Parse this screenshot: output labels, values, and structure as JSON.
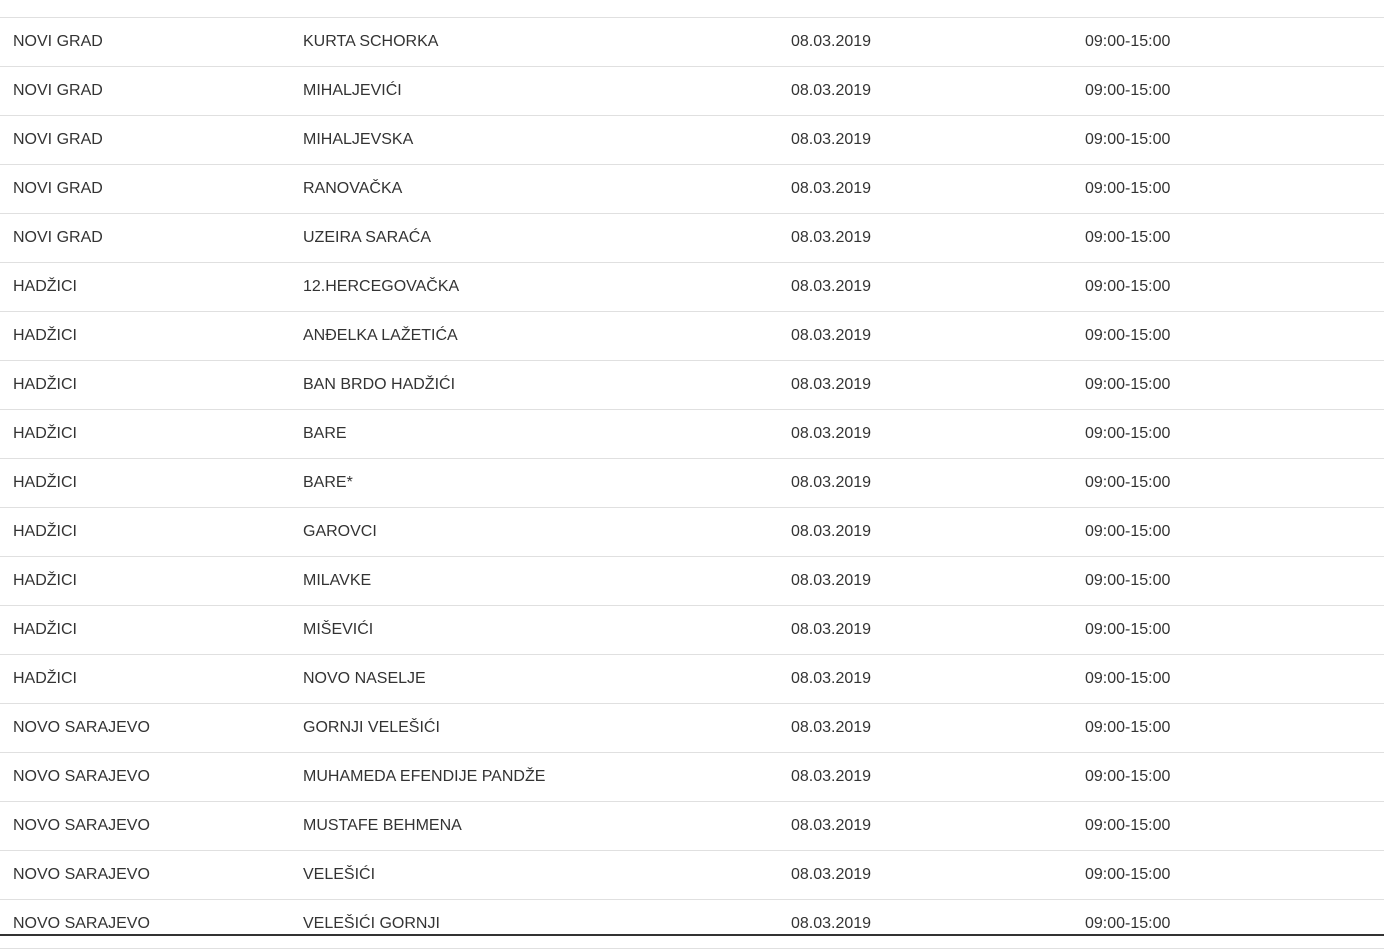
{
  "table": {
    "rows": [
      [
        "NOVI GRAD",
        "KURTA SCHORKA",
        "08.03.2019",
        "09:00-15:00"
      ],
      [
        "NOVI GRAD",
        "MIHALJEVIĆI",
        "08.03.2019",
        "09:00-15:00"
      ],
      [
        "NOVI GRAD",
        "MIHALJEVSKA",
        "08.03.2019",
        "09:00-15:00"
      ],
      [
        "NOVI GRAD",
        "RANOVAČKA",
        "08.03.2019",
        "09:00-15:00"
      ],
      [
        "NOVI GRAD",
        "UZEIRA SARAĆA",
        "08.03.2019",
        "09:00-15:00"
      ],
      [
        "HADŽICI",
        "12.HERCEGOVAČKA",
        "08.03.2019",
        "09:00-15:00"
      ],
      [
        "HADŽICI",
        "ANĐELKA LAŽETIĆA",
        "08.03.2019",
        "09:00-15:00"
      ],
      [
        "HADŽICI",
        "BAN BRDO HADŽIĆI",
        "08.03.2019",
        "09:00-15:00"
      ],
      [
        "HADŽICI",
        "BARE",
        "08.03.2019",
        "09:00-15:00"
      ],
      [
        "HADŽICI",
        "BARE*",
        "08.03.2019",
        "09:00-15:00"
      ],
      [
        "HADŽICI",
        "GAROVCI",
        "08.03.2019",
        "09:00-15:00"
      ],
      [
        "HADŽICI",
        "MILAVKE",
        "08.03.2019",
        "09:00-15:00"
      ],
      [
        "HADŽICI",
        "MIŠEVIĆI",
        "08.03.2019",
        "09:00-15:00"
      ],
      [
        "HADŽICI",
        "NOVO NASELJE",
        "08.03.2019",
        "09:00-15:00"
      ],
      [
        "NOVO SARAJEVO",
        "GORNJI VELEŠIĆI",
        "08.03.2019",
        "09:00-15:00"
      ],
      [
        "NOVO SARAJEVO",
        "MUHAMEDA EFENDIJE PANDŽE",
        "08.03.2019",
        "09:00-15:00"
      ],
      [
        "NOVO SARAJEVO",
        "MUSTAFE BEHMENA",
        "08.03.2019",
        "09:00-15:00"
      ],
      [
        "NOVO SARAJEVO",
        "VELEŠIĆI",
        "08.03.2019",
        "09:00-15:00"
      ],
      [
        "NOVO SARAJEVO",
        "VELEŠIĆI GORNJI",
        "08.03.2019",
        "09:00-15:00"
      ]
    ]
  }
}
